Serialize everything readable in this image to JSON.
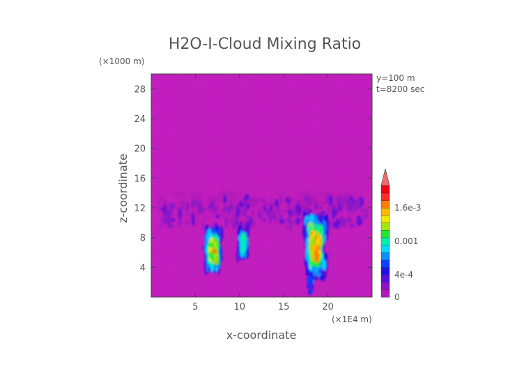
{
  "chart_data": {
    "type": "heatmap",
    "title": "H2O-I-Cloud Mixing Ratio",
    "xlabel": "x-coordinate",
    "ylabel": "z-coordinate",
    "x_unit": "(×1E4 m)",
    "y_unit": "(×1000 m)",
    "annotations": [
      "y=100 m",
      "t=8200 sec"
    ],
    "xlim": [
      0,
      25
    ],
    "ylim": [
      0,
      30
    ],
    "x_ticks": [
      5,
      10,
      15,
      20
    ],
    "y_ticks": [
      4,
      8,
      12,
      16,
      20,
      24,
      28
    ],
    "colorbar": {
      "range": [
        0,
        0.002
      ],
      "tick_values": [
        0,
        0.0004,
        0.001,
        0.0016
      ],
      "tick_labels": [
        "0",
        "4e-4",
        "0.001",
        "1.6e-3"
      ],
      "extend": "max",
      "background_color": "#c41fc0",
      "colors": [
        "#b21ab8",
        "#8c14c8",
        "#5a10d8",
        "#2010e8",
        "#0a40ff",
        "#0890ff",
        "#06d8ff",
        "#00f2a8",
        "#22e830",
        "#a0e810",
        "#f0e800",
        "#ffb800",
        "#ff7a00",
        "#ff2a20",
        "#f80010"
      ],
      "over_color": "#f26a6a"
    },
    "features": [
      {
        "x_range": [
          1,
          24.5
        ],
        "z_range": [
          9.5,
          13.5
        ],
        "level": "low-blue",
        "note": "broad upper cloud layer"
      },
      {
        "x_range": [
          5.5,
          8
        ],
        "z_range": [
          3,
          9.5
        ],
        "peak": 0.0014,
        "note": "cloud core near x=7"
      },
      {
        "x_range": [
          9.5,
          11
        ],
        "z_range": [
          5,
          9.5
        ],
        "peak": 0.001,
        "note": "cloud core near x=10.5"
      },
      {
        "x_range": [
          17.5,
          20.5
        ],
        "z_range": [
          0.5,
          12
        ],
        "peak": 0.0014,
        "note": "main cloud core near x=18.5"
      }
    ]
  }
}
